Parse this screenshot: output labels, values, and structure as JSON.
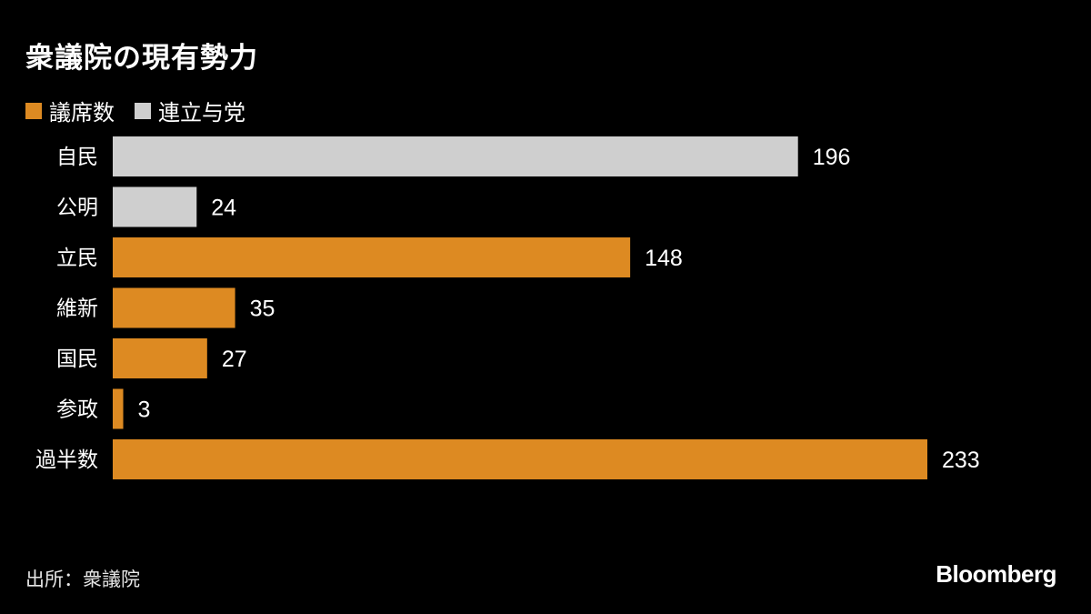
{
  "title": "衆議院の現有勢力",
  "legend": [
    {
      "label": "議席数",
      "color": "#dd8a22"
    },
    {
      "label": "連立与党",
      "color": "#cfcfcf"
    }
  ],
  "source": "出所：衆議院",
  "logo_text": "Bloomberg",
  "chart_data": {
    "type": "bar",
    "orientation": "horizontal",
    "categories": [
      "自民",
      "公明",
      "立民",
      "維新",
      "国民",
      "参政",
      "過半数"
    ],
    "values": [
      196,
      24,
      148,
      35,
      27,
      3,
      233
    ],
    "bar_colors": [
      "#cfcfcf",
      "#cfcfcf",
      "#dd8a22",
      "#dd8a22",
      "#dd8a22",
      "#dd8a22",
      "#dd8a22"
    ],
    "xlim": [
      0,
      233
    ],
    "grid": false,
    "legend_position": "top-left"
  }
}
